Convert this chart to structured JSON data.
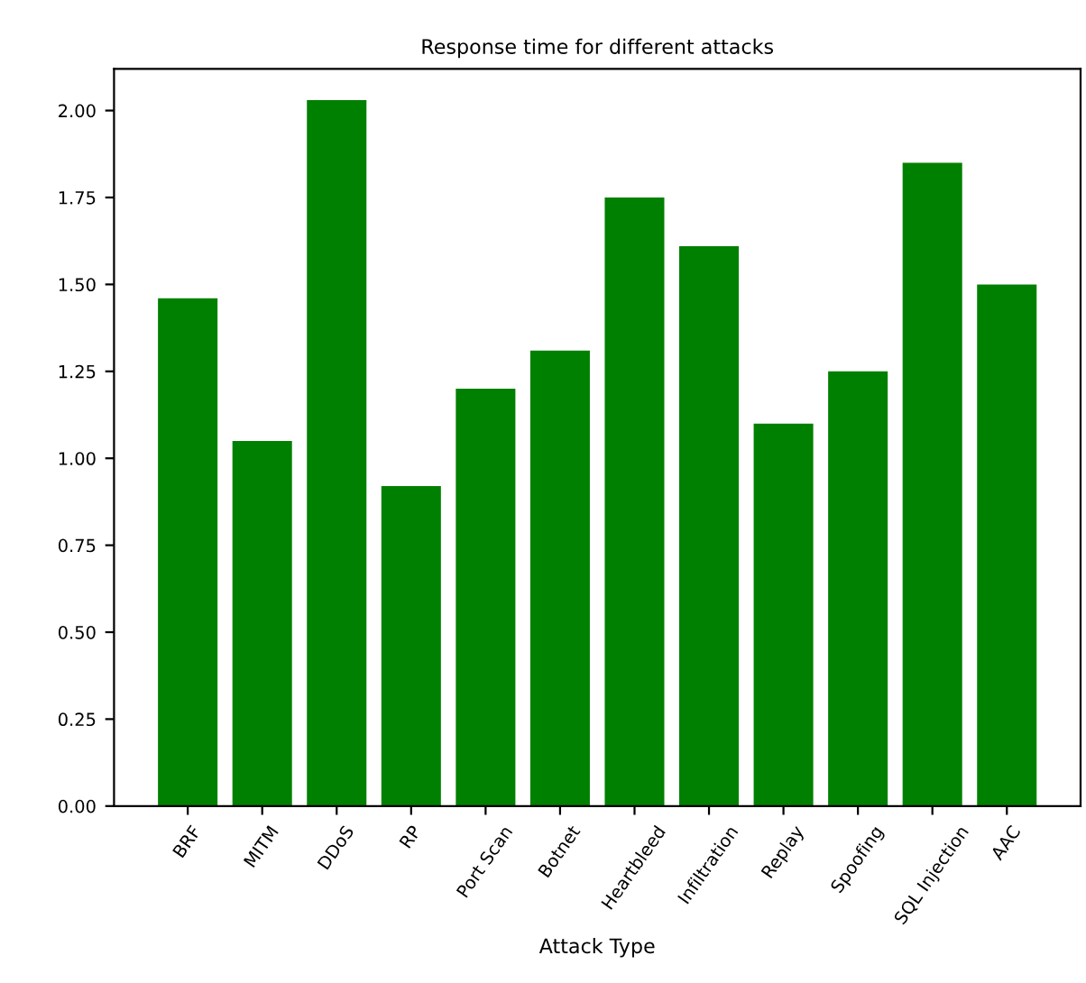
{
  "chart_data": {
    "type": "bar",
    "title": "Response time for different attacks",
    "xlabel": "Attack Type",
    "categories": [
      "BRF",
      "MITM",
      "DDoS",
      "RP",
      "Port Scan",
      "Botnet",
      "Heartbleed",
      "Infiltration",
      "Replay",
      "Spoofing",
      "SQL Injection",
      "AAC"
    ],
    "values": [
      1.46,
      1.05,
      2.03,
      0.92,
      1.2,
      1.31,
      1.75,
      1.61,
      1.1,
      1.25,
      1.85,
      1.5
    ],
    "color": "#008000",
    "ylim": [
      0,
      2.12
    ],
    "yticks": [
      {
        "value": 0,
        "label": "0.00"
      },
      {
        "value": 0.25,
        "label": "0.25"
      },
      {
        "value": 0.5,
        "label": "0.50"
      },
      {
        "value": 0.75,
        "label": "0.75"
      },
      {
        "value": 1,
        "label": "1.00"
      },
      {
        "value": 1.25,
        "label": "1.25"
      },
      {
        "value": 1.5,
        "label": "1.50"
      },
      {
        "value": 1.75,
        "label": "1.75"
      },
      {
        "value": 2,
        "label": "2.00"
      }
    ],
    "grid": false
  }
}
